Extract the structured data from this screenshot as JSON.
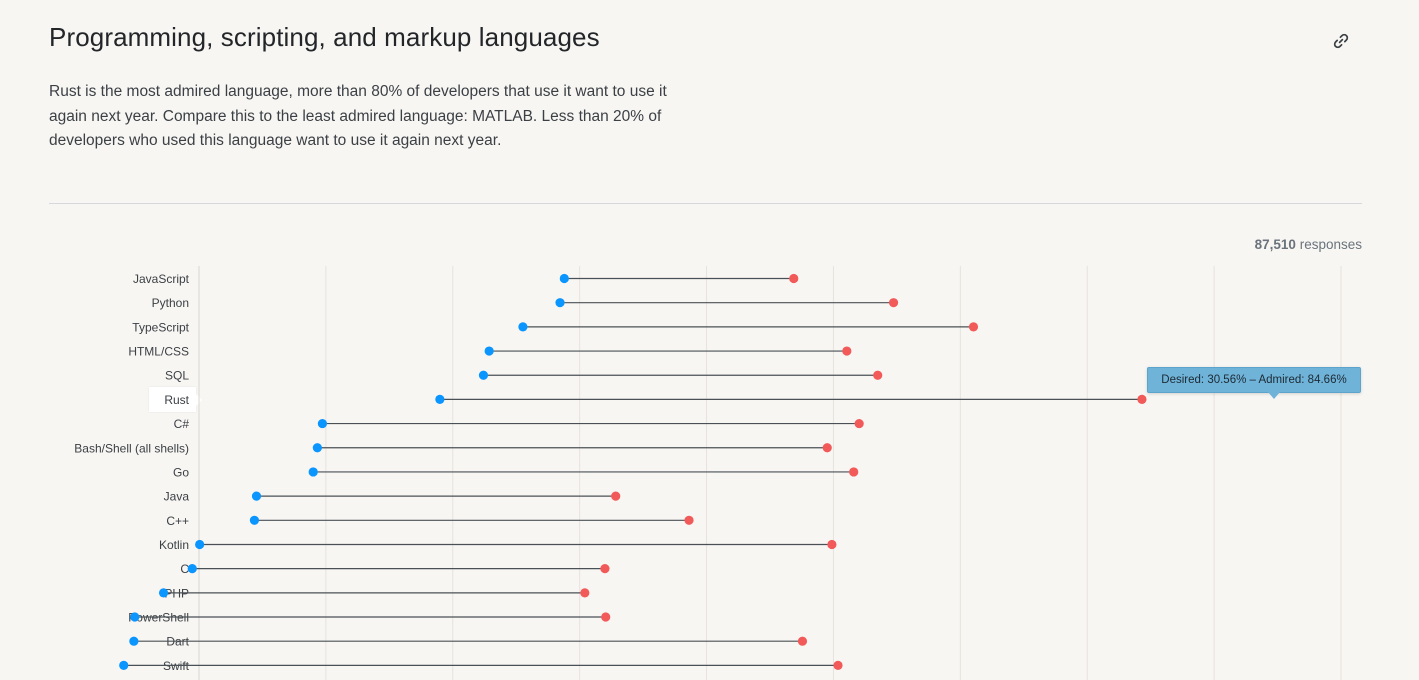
{
  "title": "Programming, scripting, and markup languages",
  "description": "Rust is the most admired language, more than 80% of developers that use it want to use it again next year. Compare this to the least admired language: MATLAB. Less than 20% of developers who used this language want to use it again next year.",
  "responses": {
    "count": "87,510",
    "label": "responses"
  },
  "tooltip": {
    "text": "Desired: 30.56% – Admired: 84.66%"
  },
  "colors": {
    "desired": "#0a95ff",
    "admired": "#f25a5a",
    "line": "#4a5156",
    "grid": "#e6e3de"
  },
  "chart_data": {
    "type": "dumbbell",
    "title": "Programming, scripting, and markup languages",
    "xlim": [
      12,
      100
    ],
    "series": [
      {
        "name": "Desired",
        "key": "desired"
      },
      {
        "name": "Admired",
        "key": "admired"
      }
    ],
    "highlighted": "Rust",
    "rows": [
      {
        "label": "JavaScript",
        "desired": 40.15,
        "admired": 57.83
      },
      {
        "label": "Python",
        "desired": 39.82,
        "admired": 65.52
      },
      {
        "label": "TypeScript",
        "desired": 36.96,
        "admired": 71.68
      },
      {
        "label": "HTML/CSS",
        "desired": 34.36,
        "admired": 61.92
      },
      {
        "label": "SQL",
        "desired": 33.92,
        "admired": 64.3
      },
      {
        "label": "Rust",
        "desired": 30.56,
        "admired": 84.66
      },
      {
        "label": "C#",
        "desired": 21.51,
        "admired": 62.87
      },
      {
        "label": "Bash/Shell (all shells)",
        "desired": 21.12,
        "admired": 60.41
      },
      {
        "label": "Go",
        "desired": 20.8,
        "admired": 62.45
      },
      {
        "label": "Java",
        "desired": 16.43,
        "admired": 44.11
      },
      {
        "label": "C++",
        "desired": 16.27,
        "admired": 49.76
      },
      {
        "label": "Kotlin",
        "desired": 12.05,
        "admired": 60.77
      },
      {
        "label": "C",
        "desired": 11.48,
        "admired": 43.28
      },
      {
        "label": "PHP",
        "desired": 9.27,
        "admired": 41.73
      },
      {
        "label": "PowerShell",
        "desired": 7.05,
        "admired": 43.34
      },
      {
        "label": "Dart",
        "desired": 6.98,
        "admired": 58.5
      },
      {
        "label": "Swift",
        "desired": 6.2,
        "admired": 61.24
      }
    ]
  }
}
